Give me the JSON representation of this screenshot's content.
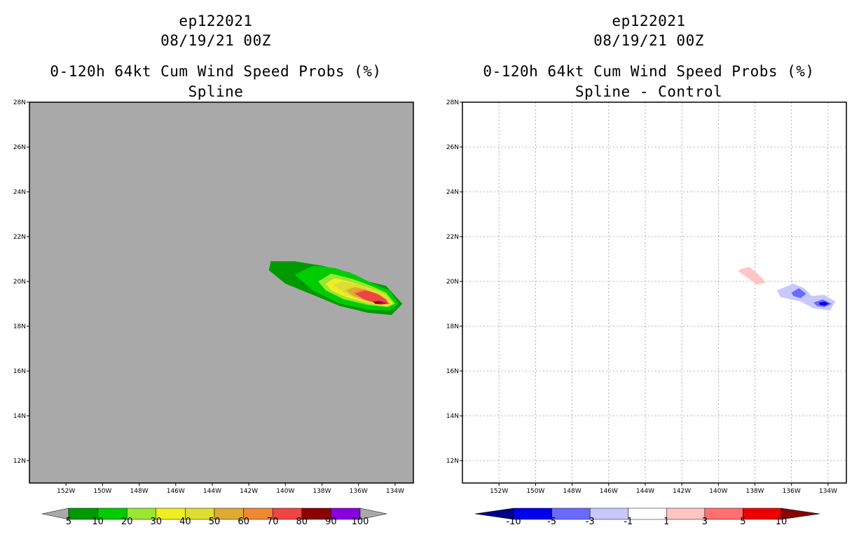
{
  "chart_data": [
    {
      "type": "heatmap",
      "storm_id": "ep122021",
      "datetime": "08/19/21 00Z",
      "title": "0-120h 64kt Cum Wind Speed Probs (%)",
      "subtitle": "Spline",
      "background_color": "#a9a9a9",
      "grid": false,
      "lon_range_deg_west": [
        154,
        133
      ],
      "lat_range_deg_north": [
        11,
        28
      ],
      "x_tick_labels": [
        "152W",
        "150W",
        "148W",
        "146W",
        "144W",
        "142W",
        "140W",
        "138W",
        "136W",
        "134W"
      ],
      "y_tick_labels": [
        "28N",
        "26N",
        "24N",
        "22N",
        "20N",
        "18N",
        "16N",
        "14N",
        "12N"
      ],
      "colorbar": {
        "labels": [
          "5",
          "10",
          "20",
          "30",
          "40",
          "50",
          "60",
          "70",
          "80",
          "90",
          "100"
        ],
        "colors": [
          "#009900",
          "#00cc00",
          "#99e633",
          "#eeee22",
          "#dddd33",
          "#ddaa33",
          "#ee8833",
          "#ee4444",
          "#8b0000",
          "#8800dd"
        ],
        "under_color": "#a9a9a9",
        "over_color": "#a9a9a9"
      },
      "contours": [
        {
          "level": 5,
          "color": "#009900",
          "points": [
            [
              -140.8,
              20.9
            ],
            [
              -139.5,
              20.9
            ],
            [
              -138,
              20.7
            ],
            [
              -136.5,
              20.4
            ],
            [
              -135.5,
              20
            ],
            [
              -134.5,
              19.8
            ],
            [
              -133.6,
              19.0
            ],
            [
              -134.2,
              18.5
            ],
            [
              -135.5,
              18.6
            ],
            [
              -137,
              18.9
            ],
            [
              -138.5,
              19.4
            ],
            [
              -140,
              19.9
            ],
            [
              -140.9,
              20.5
            ]
          ]
        },
        {
          "level": 10,
          "color": "#00cc00",
          "points": [
            [
              -139.5,
              20.3
            ],
            [
              -138.5,
              20.7
            ],
            [
              -137.3,
              20.6
            ],
            [
              -136.2,
              20.3
            ],
            [
              -135.2,
              19.9
            ],
            [
              -134.3,
              19.6
            ],
            [
              -133.8,
              19.0
            ],
            [
              -134.3,
              18.7
            ],
            [
              -135.5,
              18.75
            ],
            [
              -137,
              19.0
            ],
            [
              -138.5,
              19.6
            ]
          ]
        },
        {
          "level": 20,
          "color": "#99e633",
          "points": [
            [
              -138.2,
              20.0
            ],
            [
              -137.5,
              20.35
            ],
            [
              -136.3,
              20.1
            ],
            [
              -135.3,
              19.8
            ],
            [
              -134.5,
              19.5
            ],
            [
              -134.0,
              19.0
            ],
            [
              -134.4,
              18.85
            ],
            [
              -135.5,
              18.95
            ],
            [
              -136.8,
              19.2
            ],
            [
              -137.8,
              19.6
            ]
          ]
        },
        {
          "level": 30,
          "color": "#eeee22",
          "points": [
            [
              -137.8,
              19.9
            ],
            [
              -137.3,
              20.15
            ],
            [
              -136.3,
              19.95
            ],
            [
              -135.4,
              19.7
            ],
            [
              -134.5,
              19.4
            ],
            [
              -134.1,
              19.0
            ],
            [
              -134.5,
              18.9
            ],
            [
              -135.6,
              19.05
            ],
            [
              -136.7,
              19.3
            ],
            [
              -137.5,
              19.6
            ]
          ]
        },
        {
          "level": 40,
          "color": "#dddd33",
          "points": [
            [
              -137.4,
              19.85
            ],
            [
              -136.9,
              20.0
            ],
            [
              -136.0,
              19.85
            ],
            [
              -135.2,
              19.6
            ],
            [
              -134.5,
              19.35
            ],
            [
              -134.2,
              19.0
            ],
            [
              -134.6,
              18.95
            ],
            [
              -135.6,
              19.1
            ],
            [
              -136.6,
              19.4
            ]
          ]
        },
        {
          "level": 50,
          "color": "#ddaa33",
          "points": [
            [
              -136.7,
              19.6
            ],
            [
              -136.2,
              19.75
            ],
            [
              -135.5,
              19.6
            ],
            [
              -134.8,
              19.4
            ],
            [
              -134.3,
              19.0
            ],
            [
              -134.7,
              18.95
            ],
            [
              -135.6,
              19.15
            ],
            [
              -136.3,
              19.35
            ]
          ]
        },
        {
          "level": 60,
          "color": "#ee8833",
          "points": [
            [
              -136.3,
              19.5
            ],
            [
              -135.8,
              19.65
            ],
            [
              -135.2,
              19.5
            ],
            [
              -134.6,
              19.25
            ],
            [
              -134.3,
              19.0
            ],
            [
              -134.8,
              18.98
            ],
            [
              -135.6,
              19.2
            ]
          ]
        },
        {
          "level": 70,
          "color": "#ee4444",
          "points": [
            [
              -136.2,
              19.45
            ],
            [
              -135.6,
              19.6
            ],
            [
              -135.0,
              19.45
            ],
            [
              -134.5,
              19.2
            ],
            [
              -134.35,
              19.0
            ],
            [
              -134.9,
              19.0
            ],
            [
              -135.7,
              19.2
            ]
          ]
        },
        {
          "level": 80,
          "color": "#8b0000",
          "points": [
            [
              -135.2,
              19.1
            ],
            [
              -134.8,
              19.12
            ],
            [
              -134.45,
              19.02
            ],
            [
              -134.8,
              18.98
            ],
            [
              -135.1,
              19.0
            ]
          ]
        },
        {
          "level": 90,
          "color": "#8800dd",
          "points": [
            [
              -134.9,
              19.06
            ],
            [
              -134.6,
              19.06
            ],
            [
              -134.5,
              19.0
            ],
            [
              -134.8,
              18.99
            ]
          ]
        }
      ]
    },
    {
      "type": "heatmap",
      "storm_id": "ep122021",
      "datetime": "08/19/21 00Z",
      "title": "0-120h 64kt Cum Wind Speed Probs (%)",
      "subtitle": "Spline - Control",
      "background_color": "#ffffff",
      "grid": true,
      "lon_range_deg_west": [
        154,
        133
      ],
      "lat_range_deg_north": [
        11,
        28
      ],
      "x_tick_labels": [
        "152W",
        "150W",
        "148W",
        "146W",
        "144W",
        "142W",
        "140W",
        "138W",
        "136W",
        "134W"
      ],
      "y_tick_labels": [
        "28N",
        "26N",
        "24N",
        "22N",
        "20N",
        "18N",
        "16N",
        "14N",
        "12N"
      ],
      "colorbar": {
        "labels": [
          "-10",
          "-5",
          "-3",
          "-1",
          "1",
          "3",
          "5",
          "10"
        ],
        "colors": [
          "#0000ee",
          "#6a6aff",
          "#c8c8ff",
          "#ffffff",
          "#ffc4c4",
          "#ff7070",
          "#ee0000"
        ],
        "under_color": "#000088",
        "over_color": "#880000"
      },
      "contours": [
        {
          "level": 1,
          "color": "#ffc4c4",
          "points": [
            [
              -138.8,
              20.55
            ],
            [
              -138.3,
              20.65
            ],
            [
              -137.8,
              20.3
            ],
            [
              -137.4,
              19.95
            ],
            [
              -137.9,
              19.85
            ],
            [
              -138.3,
              20.1
            ],
            [
              -138.9,
              20.45
            ]
          ]
        },
        {
          "level": -1,
          "color": "#c8c8ff",
          "points": [
            [
              -136.8,
              19.6
            ],
            [
              -135.9,
              19.9
            ],
            [
              -135.3,
              19.7
            ],
            [
              -134.9,
              19.35
            ],
            [
              -134.2,
              19.4
            ],
            [
              -133.6,
              19.1
            ],
            [
              -133.9,
              18.7
            ],
            [
              -134.8,
              18.8
            ],
            [
              -135.5,
              19.1
            ],
            [
              -136.6,
              19.3
            ]
          ]
        },
        {
          "level": -3,
          "color": "#6a6aff",
          "points": [
            [
              -136.0,
              19.5
            ],
            [
              -135.6,
              19.7
            ],
            [
              -135.2,
              19.45
            ],
            [
              -135.5,
              19.25
            ],
            [
              -135.9,
              19.35
            ]
          ]
        },
        {
          "level": -3,
          "color": "#6a6aff",
          "points": [
            [
              -134.8,
              19.05
            ],
            [
              -134.3,
              19.2
            ],
            [
              -133.8,
              19.0
            ],
            [
              -134.2,
              18.85
            ],
            [
              -134.6,
              18.9
            ]
          ]
        },
        {
          "level": -5,
          "color": "#0000ee",
          "points": [
            [
              -134.5,
              19.05
            ],
            [
              -134.2,
              19.1
            ],
            [
              -133.95,
              19.0
            ],
            [
              -134.2,
              18.92
            ],
            [
              -134.45,
              18.95
            ]
          ]
        }
      ]
    }
  ]
}
